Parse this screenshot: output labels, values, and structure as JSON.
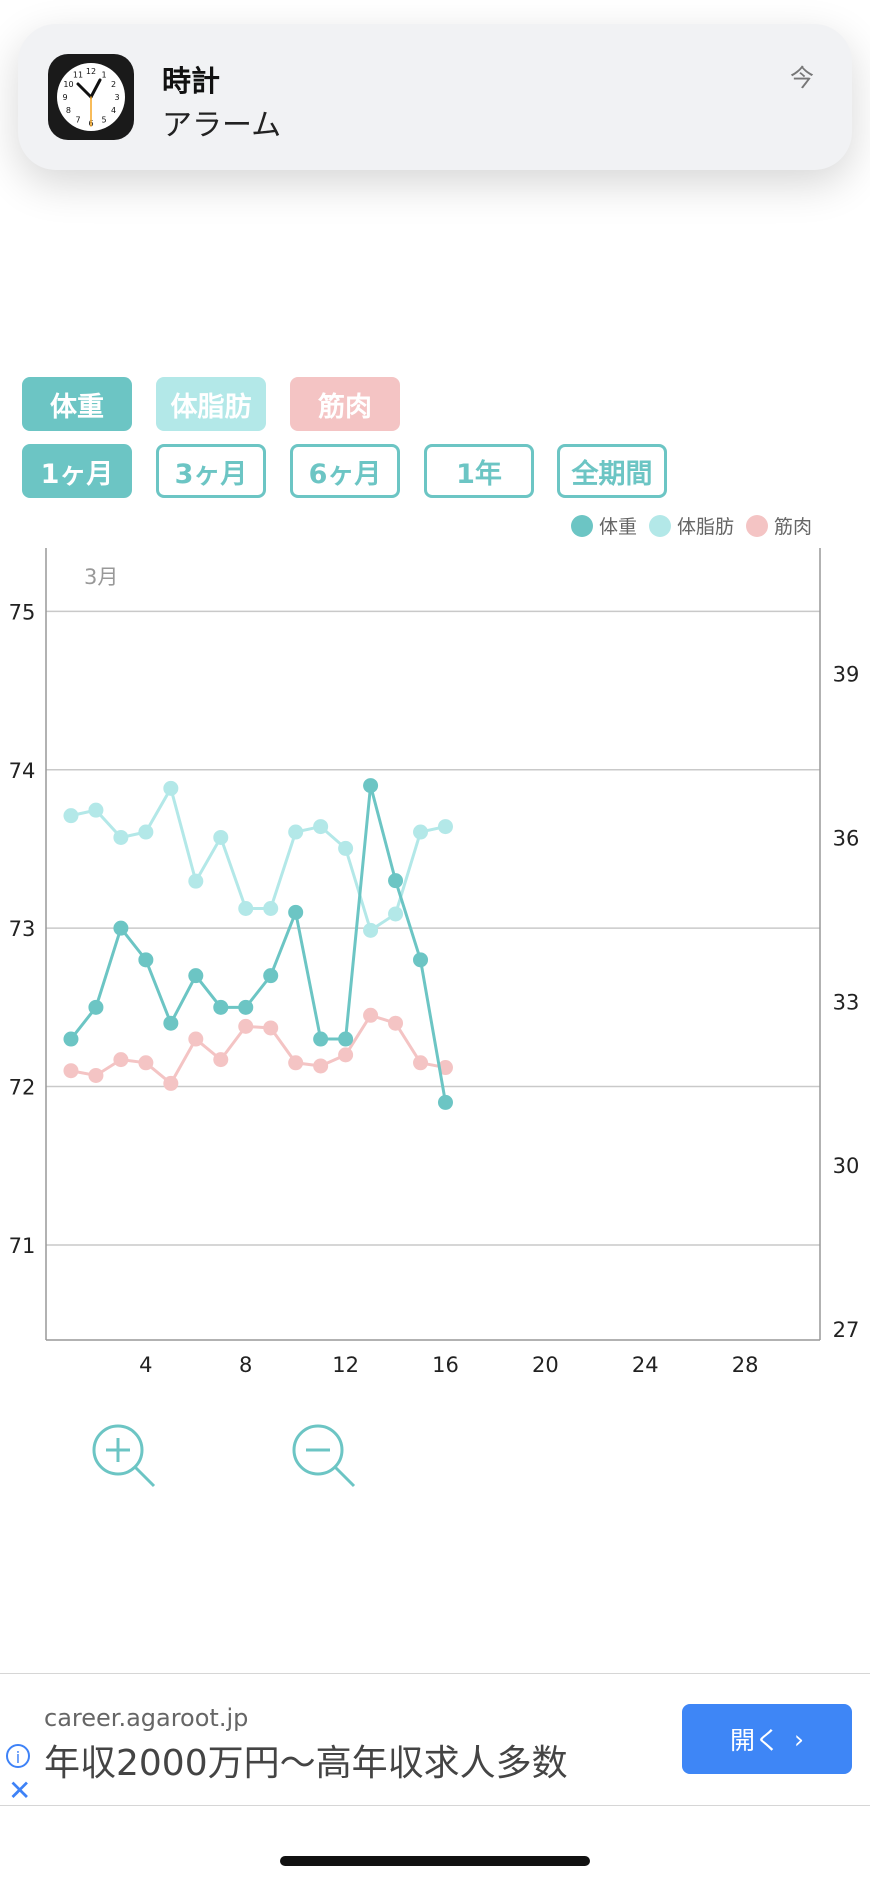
{
  "notification": {
    "app": "時計",
    "message": "アラーム",
    "time": "今",
    "clock_numbers": [
      "12",
      "1",
      "2",
      "3",
      "4",
      "5",
      "6",
      "7",
      "8",
      "9",
      "10",
      "11"
    ]
  },
  "metric_toggles": [
    {
      "label": "体重",
      "style": "fill-weight"
    },
    {
      "label": "体脂肪",
      "style": "fill-fat"
    },
    {
      "label": "筋肉",
      "style": "fill-muscle"
    }
  ],
  "periods": [
    {
      "label": "1ヶ月",
      "active": true
    },
    {
      "label": "3ヶ月",
      "active": false
    },
    {
      "label": "6ヶ月",
      "active": false
    },
    {
      "label": "1年",
      "active": false
    },
    {
      "label": "全期間",
      "active": false
    }
  ],
  "legend": [
    {
      "label": "体重",
      "color": "#6cc5c4"
    },
    {
      "label": "体脂肪",
      "color": "#b3e8e8"
    },
    {
      "label": "筋肉",
      "color": "#f4c4c4"
    }
  ],
  "chart_data": {
    "type": "line",
    "month_label": "3月",
    "x": [
      1,
      2,
      3,
      4,
      5,
      6,
      7,
      8,
      9,
      10,
      11,
      12,
      13,
      14,
      15,
      16
    ],
    "xlim": [
      0,
      31
    ],
    "xticks": [
      4,
      8,
      12,
      16,
      20,
      24,
      28
    ],
    "ylim_left": [
      70.4,
      75.4
    ],
    "yticks_left": [
      71,
      72,
      73,
      74,
      75
    ],
    "ylim_right": [
      26.8,
      41.3
    ],
    "yticks_right": [
      27,
      30,
      33,
      36,
      39
    ],
    "grid": true,
    "series": [
      {
        "name": "体重",
        "axis": "left",
        "color": "#6cc5c4",
        "values": [
          72.3,
          72.5,
          73.0,
          72.8,
          72.4,
          72.7,
          72.5,
          72.5,
          72.7,
          73.1,
          72.3,
          72.3,
          73.9,
          73.3,
          72.8,
          71.9
        ]
      },
      {
        "name": "体脂肪",
        "axis": "right",
        "color": "#b3e8e8",
        "values": [
          36.4,
          36.5,
          36.0,
          36.1,
          36.9,
          35.2,
          36.0,
          34.7,
          34.7,
          36.1,
          36.2,
          35.8,
          34.3,
          34.6,
          36.1,
          36.2
        ]
      },
      {
        "name": "筋肉",
        "axis": "left",
        "color": "#f4c4c4",
        "values": [
          72.1,
          72.07,
          72.17,
          72.15,
          72.02,
          72.3,
          72.17,
          72.38,
          72.37,
          72.15,
          72.13,
          72.2,
          72.45,
          72.4,
          72.15,
          72.12
        ]
      }
    ]
  },
  "ad": {
    "domain": "career.agaroot.jp",
    "text": "年収2000万円〜高年収求人多数",
    "button": "開く"
  }
}
